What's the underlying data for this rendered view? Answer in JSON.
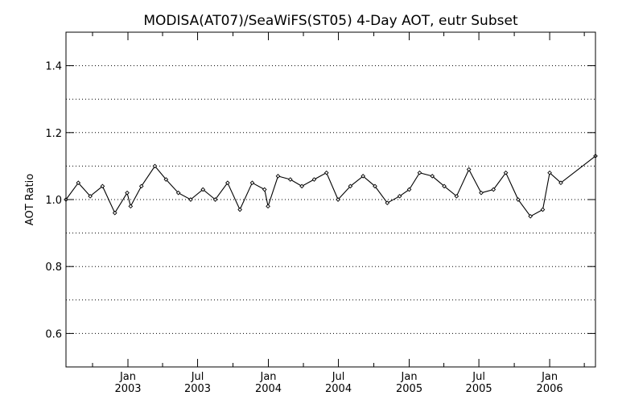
{
  "chart_data": {
    "type": "line",
    "title": "MODISA(AT07)/SeaWiFS(ST05) 4-Day AOT, eutr Subset",
    "xlabel": "",
    "ylabel": "AOT Ratio",
    "ylim": [
      0.5,
      1.5
    ],
    "yticks": [
      0.6,
      0.8,
      1.0,
      1.2,
      1.4
    ],
    "ytick_labels": [
      "0.6",
      "0.8",
      "1.0",
      "1.2",
      "1.4"
    ],
    "ygrid": [
      0.6,
      0.7,
      0.8,
      0.9,
      1.0,
      1.1,
      1.2,
      1.3,
      1.4
    ],
    "xlim": [
      "2002-07-24",
      "2006-04-30"
    ],
    "xticks": [
      {
        "date": "2003-01-01",
        "month": "Jan",
        "year": "2003"
      },
      {
        "date": "2003-07-01",
        "month": "Jul",
        "year": "2003"
      },
      {
        "date": "2004-01-01",
        "month": "Jan",
        "year": "2004"
      },
      {
        "date": "2004-07-01",
        "month": "Jul",
        "year": "2004"
      },
      {
        "date": "2005-01-01",
        "month": "Jan",
        "year": "2005"
      },
      {
        "date": "2005-07-01",
        "month": "Jul",
        "year": "2005"
      },
      {
        "date": "2006-01-01",
        "month": "Jan",
        "year": "2006"
      }
    ],
    "xminor_ticks": [
      "2002-10-01",
      "2003-04-01",
      "2003-10-01",
      "2004-04-01",
      "2004-10-01",
      "2005-04-01",
      "2005-10-01",
      "2006-04-01"
    ],
    "grid": "horizontal-dotted",
    "line_color": "#000000",
    "marker": "small-diamond",
    "series": [
      {
        "x": [
          "2002-07-24",
          "2002-08-25",
          "2002-09-25",
          "2002-10-27",
          "2002-11-28",
          "2002-12-30",
          "2003-01-08",
          "2003-02-05",
          "2003-03-12",
          "2003-04-10",
          "2003-05-12",
          "2003-06-13",
          "2003-07-15",
          "2003-08-16",
          "2003-09-17",
          "2003-10-19",
          "2003-11-20",
          "2003-12-22",
          "2003-12-31",
          "2004-01-26",
          "2004-02-27",
          "2004-03-28",
          "2004-04-29",
          "2004-05-31",
          "2004-06-30",
          "2004-08-01",
          "2004-09-03",
          "2004-10-04",
          "2004-11-05",
          "2004-12-07",
          "2005-01-01",
          "2005-01-28",
          "2005-03-02",
          "2005-04-02",
          "2005-05-04",
          "2005-06-05",
          "2005-07-07",
          "2005-08-08",
          "2005-09-09",
          "2005-10-11",
          "2005-11-12",
          "2005-12-14",
          "2006-01-01",
          "2006-01-30",
          "2006-04-30"
        ],
        "y": [
          1.0,
          1.05,
          1.01,
          1.04,
          0.96,
          1.02,
          0.98,
          1.04,
          1.1,
          1.06,
          1.02,
          1.0,
          1.03,
          1.0,
          1.05,
          0.97,
          1.05,
          1.03,
          0.98,
          1.07,
          1.06,
          1.04,
          1.06,
          1.08,
          1.0,
          1.04,
          1.07,
          1.04,
          0.99,
          1.01,
          1.03,
          1.08,
          1.07,
          1.04,
          1.01,
          1.09,
          1.02,
          1.03,
          1.08,
          1.0,
          0.95,
          0.97,
          1.08,
          1.05,
          1.13
        ]
      }
    ]
  }
}
